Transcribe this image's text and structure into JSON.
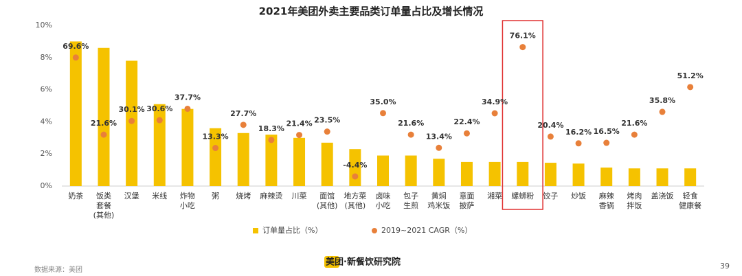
{
  "chart_data": {
    "type": "bar",
    "title": "2021年美团外卖主要品类订单量占比及增长情况",
    "categories": [
      "奶茶",
      "饭类\n套餐\n(其他)",
      "汉堡",
      "米线",
      "炸物\n小吃",
      "粥",
      "烧烤",
      "麻辣烫",
      "川菜",
      "面馆\n(其他)",
      "地方菜\n(其他)",
      "卤味\n小吃",
      "包子\n生煎",
      "黄焖\n鸡米饭",
      "意面\n披萨",
      "湘菜",
      "螺蛳粉",
      "饺子",
      "炒饭",
      "麻辣\n香锅",
      "烤肉\n拌饭",
      "盖浇饭",
      "轻食\n健康餐"
    ],
    "series": [
      {
        "name": "订单量占比（%）",
        "type": "bar",
        "color": "#f5c200",
        "values": [
          9.0,
          8.6,
          7.8,
          5.1,
          4.8,
          3.6,
          3.3,
          3.2,
          3.0,
          2.7,
          2.3,
          1.9,
          1.9,
          1.7,
          1.5,
          1.5,
          1.5,
          1.45,
          1.4,
          1.15,
          1.1,
          1.1,
          1.1
        ]
      },
      {
        "name": "2019~2021 CAGR（%）",
        "type": "scatter",
        "axis": "y2",
        "color": "#e8803a",
        "values": [
          69.6,
          21.6,
          30.1,
          30.6,
          37.7,
          13.3,
          27.7,
          18.3,
          21.4,
          23.5,
          -4.4,
          35,
          21.6,
          13.4,
          22.4,
          34.9,
          76.1,
          20.4,
          16.2,
          16.5,
          21.6,
          35.8,
          51.2
        ],
        "value_labels": [
          "69.6%",
          "21.6%",
          "30.1%",
          "30.6%",
          "37.7%",
          "13.3%",
          "27.7%",
          "18.3%",
          "21.4%",
          "23.5%",
          "-4.4%",
          "35.0%",
          "21.6%",
          "13.4%",
          "22.4%",
          "34.9%",
          "76.1%",
          "20.4%",
          "16.2%",
          "16.5%",
          "21.6%",
          "35.8%",
          "51.2%"
        ]
      }
    ],
    "ylim": [
      0,
      10
    ],
    "yticks": [
      {
        "value": 0,
        "label": "0%"
      },
      {
        "value": 2,
        "label": "2%"
      },
      {
        "value": 4,
        "label": "4%"
      },
      {
        "value": 6,
        "label": "6%"
      },
      {
        "value": 8,
        "label": "8%"
      },
      {
        "value": 10,
        "label": "10%"
      }
    ],
    "y2lim": [
      -10.4,
      89.6
    ],
    "grid": false,
    "highlight": "螺蛳粉",
    "source": "数据来源：美团",
    "logo": "美团·新餐饮研究院",
    "page_number": "39"
  }
}
